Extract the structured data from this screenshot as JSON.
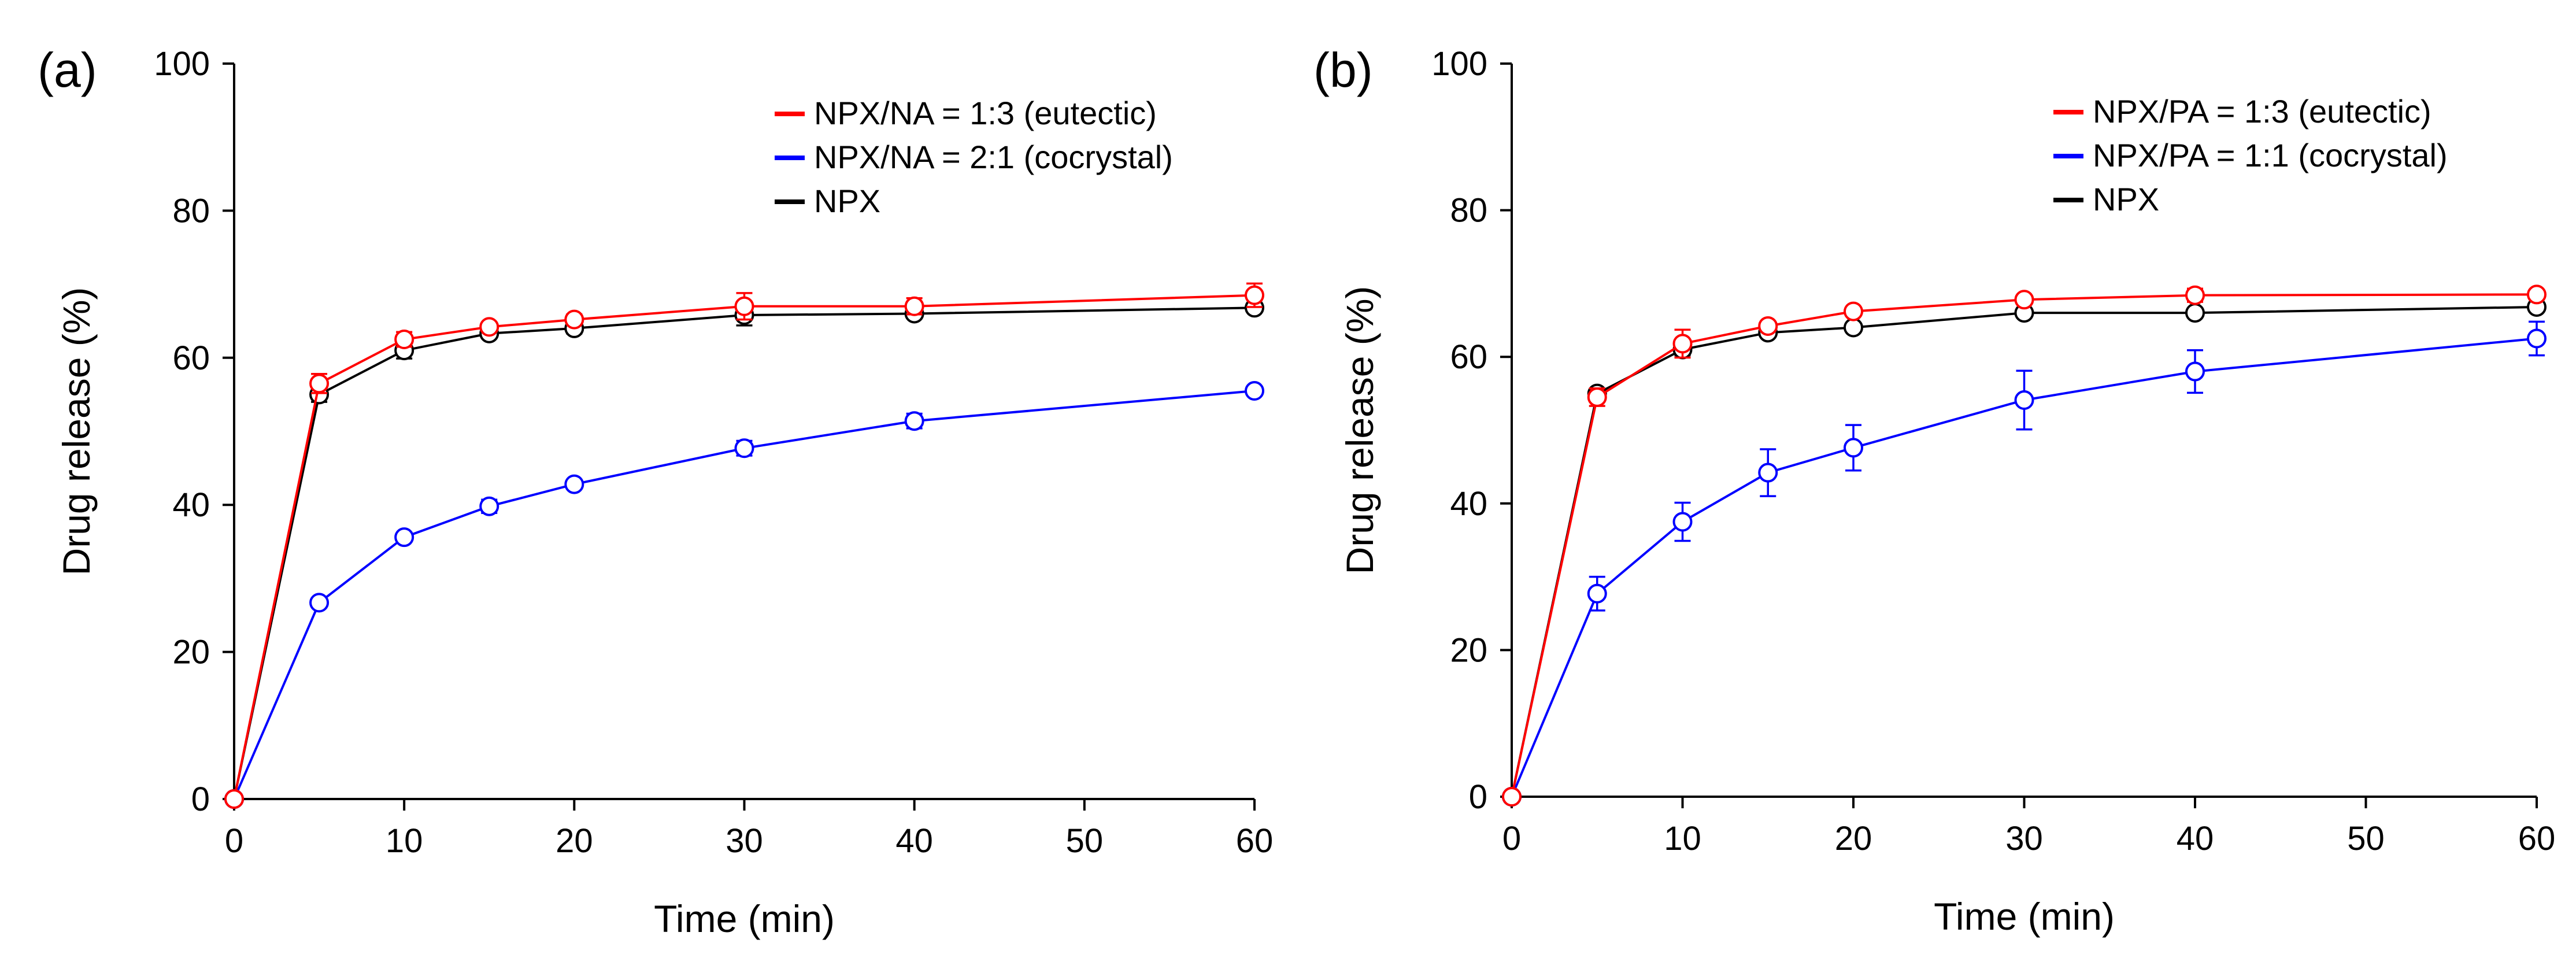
{
  "chart_data": [
    {
      "type": "line",
      "panel_label": "(a)",
      "xlabel": "Time (min)",
      "ylabel": "Drug release (%)",
      "xlim": [
        0,
        60
      ],
      "ylim": [
        0,
        100
      ],
      "xticks": [
        0,
        10,
        20,
        30,
        40,
        50,
        60
      ],
      "yticks": [
        0,
        20,
        40,
        60,
        80,
        100
      ],
      "legend_position": "top-right",
      "x": [
        0,
        5,
        10,
        15,
        20,
        30,
        40,
        60
      ],
      "series": [
        {
          "name": "NPX/NA = 1:3 (eutectic)",
          "color": "#ff0000",
          "values": [
            0,
            56.5,
            62.5,
            64.2,
            65.2,
            67.0,
            67.0,
            68.5
          ],
          "errors": [
            0,
            1.3,
            1.0,
            0.6,
            0.7,
            1.8,
            1.1,
            1.6
          ]
        },
        {
          "name": "NPX/NA = 2:1 (cocrystal)",
          "color": "#0000ff",
          "values": [
            0,
            26.7,
            35.6,
            39.8,
            42.8,
            47.7,
            51.4,
            55.5
          ],
          "errors": [
            0,
            0.5,
            0.5,
            0.9,
            0.5,
            1.0,
            1.0,
            0.5
          ]
        },
        {
          "name": "NPX",
          "color": "#000000",
          "values": [
            0,
            55.0,
            61.0,
            63.3,
            64.0,
            65.8,
            66.0,
            66.8
          ],
          "errors": [
            0,
            1.0,
            1.1,
            0.6,
            0.7,
            1.4,
            0.6,
            0.6
          ]
        }
      ]
    },
    {
      "type": "line",
      "panel_label": "(b)",
      "xlabel": "Time (min)",
      "ylabel": "Drug release (%)",
      "xlim": [
        0,
        60
      ],
      "ylim": [
        0,
        100
      ],
      "xticks": [
        0,
        10,
        20,
        30,
        40,
        50,
        60
      ],
      "yticks": [
        0,
        20,
        40,
        60,
        80,
        100
      ],
      "legend_position": "top-right",
      "x": [
        0,
        5,
        10,
        15,
        20,
        30,
        40,
        60
      ],
      "series": [
        {
          "name": "NPX/PA = 1:3 (eutectic)",
          "color": "#ff0000",
          "values": [
            0,
            54.5,
            61.8,
            64.2,
            66.2,
            67.8,
            68.4,
            68.5
          ],
          "errors": [
            0,
            1.2,
            1.9,
            0.6,
            0.5,
            0.5,
            0.9,
            0.5
          ]
        },
        {
          "name": "NPX/PA = 1:1 (cocrystal)",
          "color": "#0000ff",
          "values": [
            0,
            27.7,
            37.5,
            44.2,
            47.6,
            54.1,
            58.0,
            62.5
          ],
          "errors": [
            0,
            2.3,
            2.6,
            3.2,
            3.1,
            4.0,
            2.9,
            2.3
          ]
        },
        {
          "name": "NPX",
          "color": "#000000",
          "values": [
            0,
            55.0,
            61.0,
            63.3,
            64.0,
            66.0,
            66.0,
            66.8
          ],
          "errors": [
            0,
            0.6,
            0.8,
            0.5,
            0.5,
            0.6,
            0.5,
            0.5
          ]
        }
      ]
    }
  ]
}
